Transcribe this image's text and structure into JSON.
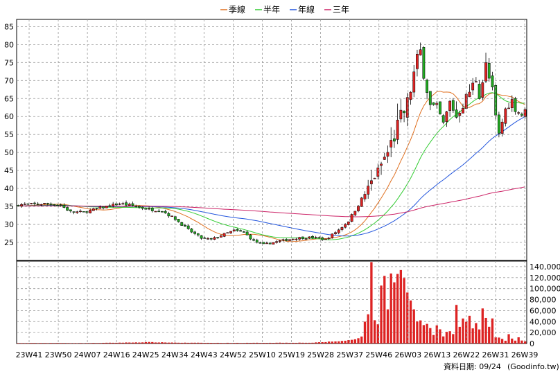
{
  "chart_data": {
    "type": "candlestick",
    "legend": [
      {
        "name": "季線",
        "color": "#e07020"
      },
      {
        "name": "半年",
        "color": "#33cc33"
      },
      {
        "name": "年線",
        "color": "#2255dd"
      },
      {
        "name": "三年",
        "color": "#cc2266"
      }
    ],
    "price_ylim": [
      20,
      87
    ],
    "price_ticks": [
      25,
      30,
      35,
      40,
      45,
      50,
      55,
      60,
      65,
      70,
      75,
      80,
      85
    ],
    "volume_ylim": [
      0,
      150000
    ],
    "volume_ticks": [
      "0",
      "20,000",
      "40,000",
      "60,000",
      "80,000",
      "100,000",
      "120,000",
      "140,000"
    ],
    "volume_tick_values": [
      0,
      20000,
      40000,
      60000,
      80000,
      100000,
      120000,
      140000
    ],
    "x_labels": [
      "23W41",
      "23W50",
      "24W07",
      "24W16",
      "24W25",
      "24W34",
      "24W43",
      "24W52",
      "25W10",
      "25W19",
      "25W28",
      "25W37",
      "25W46",
      "26W03",
      "26W13",
      "26W22",
      "26W31",
      "26W39"
    ],
    "weeks": 156,
    "up_color": "#dd2222",
    "down_color": "#22aa22",
    "volume_color": "#dd2222",
    "close_anchors": [
      [
        0,
        35.5
      ],
      [
        4,
        35.6
      ],
      [
        9,
        35.8
      ],
      [
        13,
        35.3
      ],
      [
        16,
        33.5
      ],
      [
        20,
        33.4
      ],
      [
        26,
        34.8
      ],
      [
        31,
        35.8
      ],
      [
        35,
        35.2
      ],
      [
        40,
        34.2
      ],
      [
        44,
        33.8
      ],
      [
        48,
        31.5
      ],
      [
        52,
        28.5
      ],
      [
        56,
        26.2
      ],
      [
        59,
        25.8
      ],
      [
        63,
        27.3
      ],
      [
        66,
        28.3
      ],
      [
        69,
        27.8
      ],
      [
        72,
        25.4
      ],
      [
        75,
        24.4
      ],
      [
        80,
        25.4
      ],
      [
        85,
        26.2
      ],
      [
        90,
        26.4
      ],
      [
        94,
        25.8
      ],
      [
        98,
        28.5
      ],
      [
        101,
        31.0
      ],
      [
        104,
        35.5
      ],
      [
        107,
        40.0
      ],
      [
        110,
        45.0
      ],
      [
        113,
        50.0
      ],
      [
        116,
        57.0
      ],
      [
        119,
        63.5
      ],
      [
        122,
        76.0
      ],
      [
        123,
        78.0
      ],
      [
        124,
        72.0
      ],
      [
        126,
        63.0
      ],
      [
        128,
        62.5
      ],
      [
        130,
        58.0
      ],
      [
        132,
        64.0
      ],
      [
        134,
        60.0
      ],
      [
        136,
        63.5
      ],
      [
        138,
        67.0
      ],
      [
        140,
        70.5
      ],
      [
        141,
        66.0
      ],
      [
        143,
        74.0
      ],
      [
        145,
        67.0
      ],
      [
        146,
        60.0
      ],
      [
        147,
        55.0
      ],
      [
        149,
        62.0
      ],
      [
        151,
        64.5
      ],
      [
        152,
        62.0
      ],
      [
        154,
        60.5
      ],
      [
        155,
        61.5
      ]
    ],
    "volume_anchors": [
      [
        0,
        800
      ],
      [
        10,
        1000
      ],
      [
        20,
        800
      ],
      [
        30,
        1500
      ],
      [
        40,
        2500
      ],
      [
        50,
        1500
      ],
      [
        60,
        1200
      ],
      [
        70,
        1200
      ],
      [
        80,
        1500
      ],
      [
        90,
        1500
      ],
      [
        100,
        5000
      ],
      [
        103,
        8000
      ],
      [
        105,
        14000
      ],
      [
        107,
        60000
      ],
      [
        108,
        130000
      ],
      [
        109,
        45000
      ],
      [
        110,
        38000
      ],
      [
        111,
        100000
      ],
      [
        112,
        115000
      ],
      [
        113,
        72000
      ],
      [
        114,
        125000
      ],
      [
        115,
        130000
      ],
      [
        116,
        118000
      ],
      [
        117,
        145000
      ],
      [
        118,
        110000
      ],
      [
        120,
        80000
      ],
      [
        121,
        60000
      ],
      [
        122,
        35000
      ],
      [
        123,
        45000
      ],
      [
        124,
        32000
      ],
      [
        125,
        38000
      ],
      [
        126,
        25000
      ],
      [
        127,
        18000
      ],
      [
        128,
        30000
      ],
      [
        129,
        25000
      ],
      [
        130,
        12000
      ],
      [
        132,
        25000
      ],
      [
        133,
        15000
      ],
      [
        134,
        78000
      ],
      [
        135,
        30000
      ],
      [
        136,
        45000
      ],
      [
        137,
        38000
      ],
      [
        138,
        45000
      ],
      [
        139,
        25000
      ],
      [
        140,
        42000
      ],
      [
        141,
        28000
      ],
      [
        142,
        60000
      ],
      [
        143,
        50000
      ],
      [
        144,
        30000
      ],
      [
        145,
        40000
      ],
      [
        146,
        10000
      ],
      [
        147,
        12000
      ],
      [
        148,
        8000
      ],
      [
        149,
        5000
      ],
      [
        150,
        15000
      ],
      [
        151,
        8000
      ],
      [
        152,
        6000
      ],
      [
        153,
        12000
      ],
      [
        154,
        5000
      ],
      [
        155,
        4000
      ]
    ],
    "source_label": "資料日期: 09/24",
    "site_label": "(Goodinfo.tw)"
  }
}
